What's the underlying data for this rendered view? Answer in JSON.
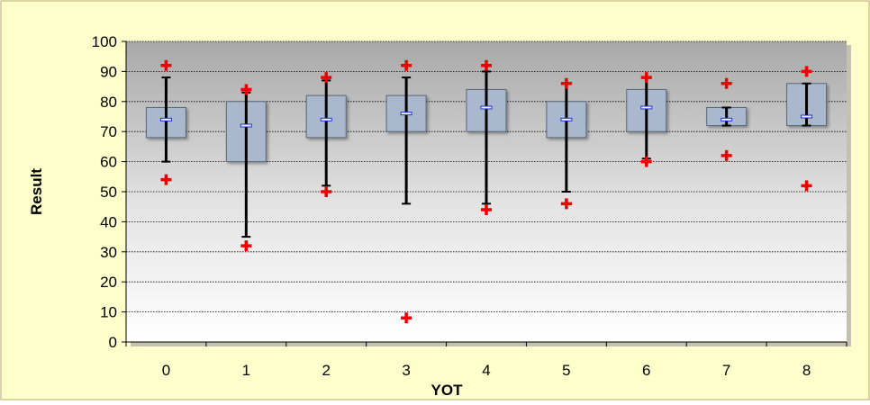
{
  "chart_data": {
    "type": "box",
    "title": "",
    "xlabel": "YOT",
    "ylabel": "Result",
    "categories": [
      "0",
      "1",
      "2",
      "3",
      "4",
      "5",
      "6",
      "7",
      "8"
    ],
    "ylim": [
      0,
      100
    ],
    "yticks": [
      0,
      10,
      20,
      30,
      40,
      50,
      60,
      70,
      80,
      90,
      100
    ],
    "grid": true,
    "legend": "none",
    "boxes": [
      {
        "category": "0",
        "q1": 68,
        "median": 74,
        "q3": 78,
        "whisker_low": 60,
        "whisker_high": 88,
        "outlier_low": 54,
        "outlier_high": 92
      },
      {
        "category": "1",
        "q1": 60,
        "median": 72,
        "q3": 80,
        "whisker_low": 35,
        "whisker_high": 83,
        "outlier_low": 32,
        "outlier_high": 84
      },
      {
        "category": "2",
        "q1": 68,
        "median": 74,
        "q3": 82,
        "whisker_low": 52,
        "whisker_high": 87,
        "outlier_low": 50,
        "outlier_high": 88
      },
      {
        "category": "3",
        "q1": 70,
        "median": 76,
        "q3": 82,
        "whisker_low": 46,
        "whisker_high": 88,
        "outlier_low": 8,
        "outlier_high": 92
      },
      {
        "category": "4",
        "q1": 70,
        "median": 78,
        "q3": 84,
        "whisker_low": 46,
        "whisker_high": 90,
        "outlier_low": 44,
        "outlier_high": 92
      },
      {
        "category": "5",
        "q1": 68,
        "median": 74,
        "q3": 80,
        "whisker_low": 50,
        "whisker_high": 86,
        "outlier_low": 46,
        "outlier_high": 86
      },
      {
        "category": "6",
        "q1": 70,
        "median": 78,
        "q3": 84,
        "whisker_low": 61,
        "whisker_high": 88,
        "outlier_low": 60,
        "outlier_high": 88
      },
      {
        "category": "7",
        "q1": 72,
        "median": 74,
        "q3": 78,
        "whisker_low": 72,
        "whisker_high": 78,
        "outlier_low": 62,
        "outlier_high": 86
      },
      {
        "category": "8",
        "q1": 72,
        "median": 75,
        "q3": 86,
        "whisker_low": 72,
        "whisker_high": 86,
        "outlier_low": 52,
        "outlier_high": 90
      }
    ],
    "colors": {
      "frame_background": "#FFFFCC",
      "frame_border": "#B8A860",
      "plot_top": "#A8A8A8",
      "plot_bottom": "#FFFFFF",
      "box_fill": "#A9B8CC",
      "box_stroke": "#5A6878",
      "whisker": "#000000",
      "median": "#2233CC",
      "outlier": "#EE0000"
    }
  }
}
